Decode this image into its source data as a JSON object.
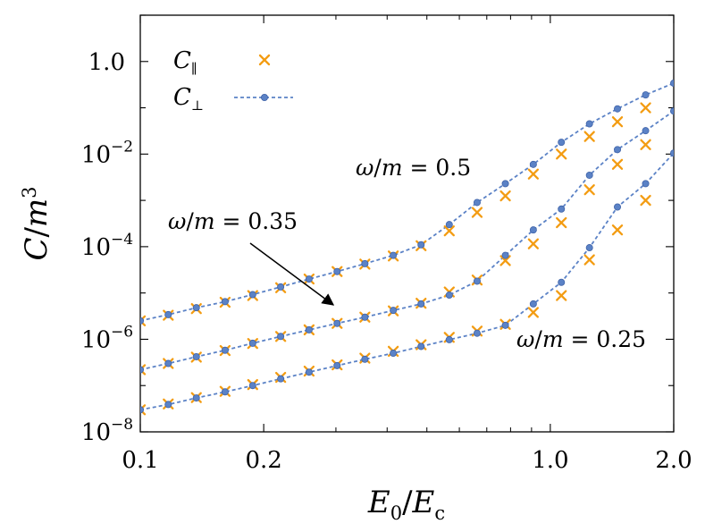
{
  "chart_data": {
    "type": "scatter",
    "xlabel": "E₀/E꜀",
    "ylabel": "C/m³",
    "x_scale": "log",
    "y_scale": "log",
    "xlim": [
      0.1,
      2.0
    ],
    "ylim": [
      1e-08,
      10
    ],
    "x_ticks": [
      {
        "value": 0.1,
        "label": "0.1"
      },
      {
        "value": 0.2,
        "label": "0.2"
      },
      {
        "value": 1.0,
        "label": "1.0"
      },
      {
        "value": 2.0,
        "label": "2.0"
      }
    ],
    "y_ticks": [
      {
        "value": 1e-08,
        "base": "10",
        "exp": "−8"
      },
      {
        "value": 1e-06,
        "base": "10",
        "exp": "−6"
      },
      {
        "value": 0.0001,
        "base": "10",
        "exp": "−4"
      },
      {
        "value": 0.01,
        "base": "10",
        "exp": "−2"
      },
      {
        "value": 1.0,
        "label": "1.0"
      }
    ],
    "legend": {
      "position": "top-left",
      "entries": [
        {
          "label": "C∥",
          "marker": "x",
          "color": "#f39c12"
        },
        {
          "label": "C⊥",
          "marker": "dot-dashed-line",
          "color": "#5b82c6"
        }
      ]
    },
    "colors": {
      "parallel": "#f39c12",
      "perpendicular": "#5b82c6"
    },
    "annotations": [
      {
        "text": "ω/m = 0.5"
      },
      {
        "text": "ω/m = 0.35",
        "arrow": true
      },
      {
        "text": "ω/m = 0.25"
      }
    ],
    "series": [
      {
        "group": "ω/m = 0.5",
        "x": [
          0.1,
          0.117,
          0.137,
          0.161,
          0.188,
          0.22,
          0.258,
          0.302,
          0.353,
          0.414,
          0.484,
          0.567,
          0.663,
          0.777,
          0.909,
          1.064,
          1.246,
          1.458,
          1.708,
          2.0
        ],
        "C_parallel": [
          2.5e-06,
          3.3e-06,
          4.6e-06,
          6.3e-06,
          8.8e-06,
          1.3e-05,
          2e-05,
          2.9e-05,
          4.2e-05,
          6.3e-05,
          0.000105,
          0.00022,
          0.00055,
          0.00125,
          0.0037,
          0.01,
          0.024,
          0.05,
          0.1,
          null
        ],
        "C_perpendicular": [
          2.5e-06,
          3.4e-06,
          4.8e-06,
          6.5e-06,
          9.2e-06,
          1.35e-05,
          2e-05,
          2.9e-05,
          4.3e-05,
          6.5e-05,
          0.00011,
          0.0003,
          0.0009,
          0.0023,
          0.006,
          0.018,
          0.045,
          0.095,
          0.19,
          0.34
        ]
      },
      {
        "group": "ω/m = 0.35",
        "x": [
          0.1,
          0.117,
          0.137,
          0.161,
          0.188,
          0.22,
          0.258,
          0.302,
          0.353,
          0.414,
          0.484,
          0.567,
          0.663,
          0.777,
          0.909,
          1.064,
          1.246,
          1.458,
          1.708,
          2.0
        ],
        "C_parallel": [
          2.2e-07,
          3e-07,
          4.1e-07,
          5.7e-07,
          8.1e-07,
          1.15e-06,
          1.6e-06,
          2.2e-06,
          3e-06,
          4.1e-06,
          6e-06,
          1.05e-05,
          1.9e-05,
          5e-05,
          0.000115,
          0.00033,
          0.0017,
          0.006,
          0.016,
          null
        ],
        "C_perpendicular": [
          2.2e-07,
          3e-07,
          4.2e-07,
          5.8e-07,
          8.2e-07,
          1.15e-06,
          1.6e-06,
          2.2e-06,
          3e-06,
          4.2e-06,
          5.8e-06,
          9e-06,
          1.8e-05,
          6.5e-05,
          0.00023,
          0.00065,
          0.0035,
          0.0125,
          0.032,
          0.085
        ]
      },
      {
        "group": "ω/m = 0.25",
        "x": [
          0.1,
          0.117,
          0.137,
          0.161,
          0.188,
          0.22,
          0.258,
          0.302,
          0.353,
          0.414,
          0.484,
          0.567,
          0.663,
          0.777,
          0.909,
          1.064,
          1.246,
          1.458,
          1.708,
          2.0
        ],
        "C_parallel": [
          3e-08,
          4e-08,
          5.5e-08,
          7.5e-08,
          1.05e-07,
          1.5e-07,
          2.05e-07,
          2.8e-07,
          3.9e-07,
          5.5e-07,
          7.6e-07,
          1.1e-06,
          1.5e-06,
          2.1e-06,
          3.8e-06,
          8.8e-06,
          5.2e-05,
          0.00023,
          0.001,
          null
        ],
        "C_perpendicular": [
          3e-08,
          3.9e-08,
          5.4e-08,
          7.3e-08,
          1e-07,
          1.4e-07,
          1.95e-07,
          2.7e-07,
          3.7e-07,
          5e-07,
          7e-07,
          9.8e-07,
          1.35e-06,
          2e-06,
          5.8e-06,
          1.7e-05,
          9.5e-05,
          0.00072,
          0.0023,
          0.0105
        ]
      }
    ]
  }
}
